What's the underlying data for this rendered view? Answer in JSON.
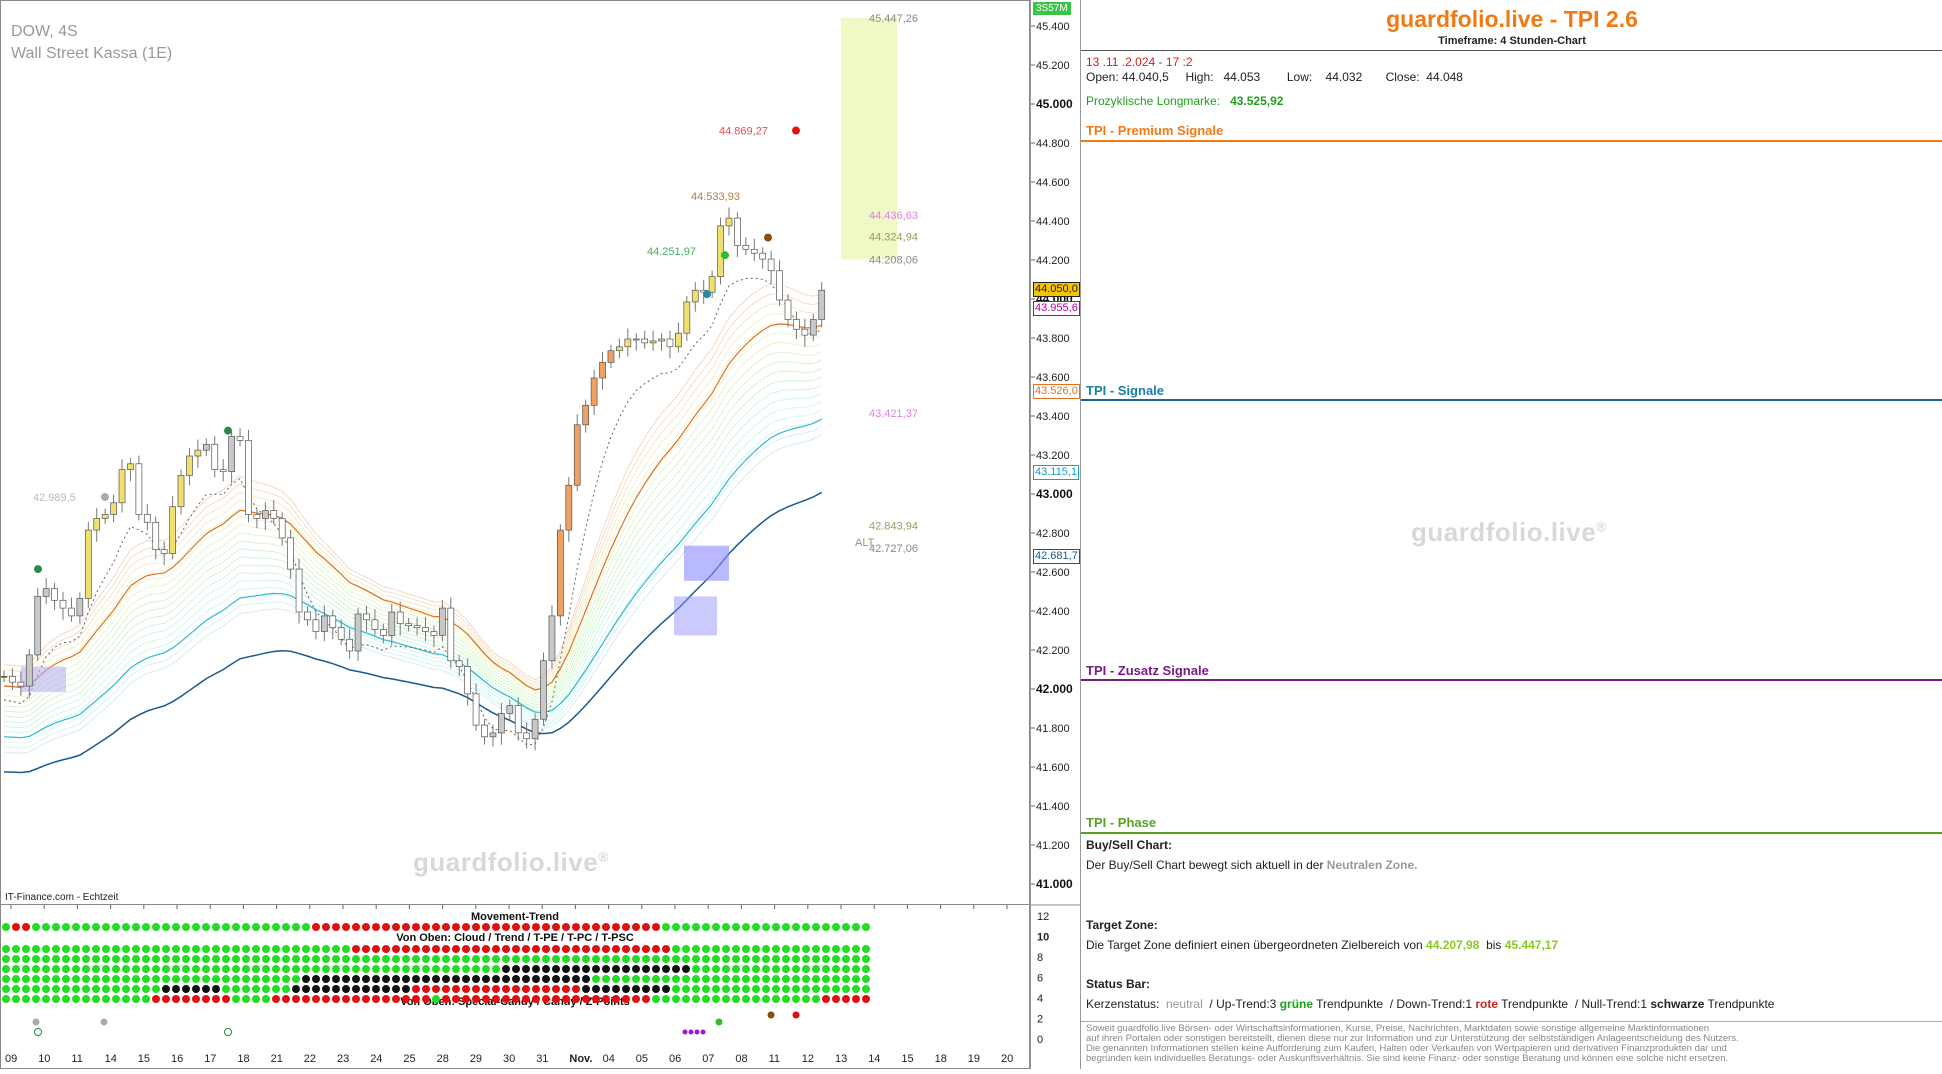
{
  "chart_header": {
    "symbol_tf": "DOW, 4S",
    "exchange": "Wall Street Kassa (1E)",
    "source": "IT-Finance.com - Echtzeit",
    "watermark": "guardfolio.live",
    "watermark_sup": "®"
  },
  "countdown": "3S57M",
  "price_axis": {
    "ticks": [
      "45.400",
      "45.200",
      "45.000",
      "44.800",
      "44.600",
      "44.400",
      "44.200",
      "44.000",
      "43.800",
      "43.600",
      "43.400",
      "43.200",
      "43.000",
      "42.800",
      "42.600",
      "42.400",
      "42.200",
      "42.000",
      "41.800",
      "41.600",
      "41.400",
      "41.200",
      "41.000"
    ],
    "tags": [
      {
        "label": "44.050,0",
        "color": "#222",
        "bg": "#f5c400",
        "value": 44050
      },
      {
        "label": "43.955,6",
        "color": "#b000b0",
        "bg": "#fff",
        "value": 43955.6
      },
      {
        "label": "43.526,0",
        "color": "#e07020",
        "bg": "#fff",
        "value": 43526
      },
      {
        "label": "43.115,1",
        "color": "#1aa0c0",
        "bg": "#fff",
        "value": 43115.1
      },
      {
        "label": "42.681,7",
        "color": "#1a5a8a",
        "bg": "#fff",
        "value": 42681.7
      }
    ]
  },
  "time_axis": [
    "09",
    "10",
    "11",
    "14",
    "15",
    "16",
    "17",
    "18",
    "21",
    "22",
    "23",
    "24",
    "25",
    "28",
    "29",
    "30",
    "31",
    "Nov.",
    "04",
    "05",
    "06",
    "07",
    "08",
    "11",
    "12",
    "13",
    "14",
    "15",
    "18",
    "19",
    "20"
  ],
  "annotations": [
    {
      "text": "45.447,26",
      "color": "#888",
      "value": 45447.26,
      "side": "target"
    },
    {
      "text": "44.869,27",
      "color": "#e05050",
      "value": 44869.27,
      "side": "left"
    },
    {
      "text": "44.533,93",
      "color": "#b08040",
      "value": 44533.93,
      "side": "left"
    },
    {
      "text": "44.436,63",
      "color": "#e080e0",
      "value": 44436.63,
      "side": "target"
    },
    {
      "text": "44.324,94",
      "color": "#999966",
      "value": 44324.94,
      "side": "target"
    },
    {
      "text": "44.251,97",
      "color": "#40b060",
      "value": 44251.97,
      "side": "left"
    },
    {
      "text": "44.208,06",
      "color": "#888",
      "value": 44208.06,
      "side": "target"
    },
    {
      "text": "43.421,37",
      "color": "#e080e0",
      "value": 43421.37,
      "side": "target"
    },
    {
      "text": "42.989,5",
      "color": "#bbb",
      "value": 42989.5,
      "side": "far"
    },
    {
      "text": "42.843,94",
      "color": "#999966",
      "value": 42843.94,
      "side": "target"
    },
    {
      "text": "ALT",
      "color": "#999966",
      "value": 42760,
      "side": "alt"
    },
    {
      "text": "42.727,06",
      "color": "#888",
      "value": 42727.06,
      "side": "target"
    }
  ],
  "chart_data": {
    "type": "candlestick",
    "ylim": [
      40900,
      45550
    ],
    "closes": [
      42070,
      42040,
      42020,
      42180,
      42480,
      42520,
      42460,
      42420,
      42380,
      42470,
      42820,
      42880,
      42900,
      42960,
      43130,
      43160,
      42900,
      42860,
      42720,
      42700,
      42940,
      43100,
      43200,
      43230,
      43260,
      43130,
      43120,
      43300,
      43280,
      42900,
      42880,
      42920,
      42880,
      42780,
      42620,
      42400,
      42360,
      42300,
      42380,
      42320,
      42260,
      42200,
      42390,
      42360,
      42310,
      42280,
      42400,
      42340,
      42330,
      42320,
      42300,
      42280,
      42420,
      42150,
      42120,
      41980,
      41820,
      41760,
      41780,
      41880,
      41920,
      41780,
      41750,
      41850,
      42150,
      42380,
      42820,
      43050,
      43360,
      43460,
      43600,
      43680,
      43740,
      43760,
      43800,
      43800,
      43780,
      43790,
      43800,
      43760,
      43830,
      43990,
      44050,
      44040,
      44120,
      44380,
      44420,
      44280,
      44260,
      44240,
      44210,
      44150,
      44000,
      43900,
      43850,
      43820,
      43900,
      44050
    ],
    "sub_panel": {
      "title_1": "Movement-Trend",
      "title_2": "Von Oben: Cloud / Trend / T-PE / T-PC / T-PSC",
      "title_3": "Von Oben: Special-Candy / Candy / Z-Points",
      "axis_ticks": [
        "12",
        "10",
        "8",
        "6",
        "4",
        "2",
        "0"
      ]
    }
  },
  "panel": {
    "title": "guardfolio.live - TPI 2.6",
    "subtitle": "Timeframe: 4 Stunden-Chart",
    "date": "13 .11 .2.024  - 17 :2",
    "ohlc": {
      "open_label": "Open:",
      "open": "44.040,5",
      "high_label": "High:",
      "high": "44.053",
      "low_label": "Low:",
      "low": "44.032",
      "close_label": "Close:",
      "close": "44.048"
    },
    "longmark_label": "Prozyklische Longmarke:",
    "longmark_value": "43.525,92",
    "sections": {
      "premium": "TPI - Premium Signale",
      "signale": "TPI - Signale",
      "zusatz": "TPI - Zusatz Signale",
      "phase": "TPI - Phase"
    },
    "buysell": {
      "title": "Buy/Sell Chart:",
      "text": "Der Buy/Sell Chart bewegt sich aktuell in der",
      "zone": "Neutralen Zone."
    },
    "target": {
      "title": "Target Zone:",
      "text": "Die Target Zone definiert einen übergeordneten Zielbereich von",
      "from": "44.207,98",
      "mid": "bis",
      "to": "45.447,17"
    },
    "status": {
      "title": "Status Bar:",
      "k_label": "Kerzenstatus:",
      "k_value": "neutral",
      "up_label": "/ Up-Trend:3",
      "up_word": "grüne",
      "up_tail": "Trendpunkte",
      "down_label": "/ Down-Trend:1",
      "down_word": "rote",
      "down_tail": "Trendpunkte",
      "null_label": "/ Null-Trend:1",
      "null_word": "schwarze",
      "null_tail": "Trendpunkte"
    },
    "disclaimer": [
      "Soweit guardfolio.live Börsen- oder Wirtschaftsinformationen, Kurse, Preise, Nachrichten, Marktdaten sowie sonstige allgemeine Marktinformationen",
      "auf ihren Portalen oder sonstigen bereitstellt, dienen diese nur zur Information und zur Unterstützung der selbstständigen Anlageentscheidung des Nutzers.",
      "Die genannten Informationen stellen keine Aufforderung zum Kaufen, Halten oder Verkaufen von Wertpapieren und derivativen Finanzprodukten dar und",
      "begründen kein individuelles Beratungs- oder Auskunftsverhältnis. Sie sind keine Finanz- oder sonstige Beratung und können eine solche nicht ersetzen."
    ]
  }
}
